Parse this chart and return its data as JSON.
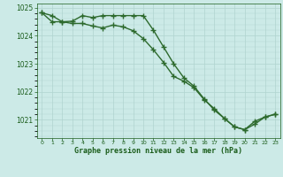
{
  "line1": {
    "x": [
      0,
      1,
      2,
      3,
      4,
      5,
      6,
      7,
      8,
      9,
      10,
      11,
      12,
      13,
      14,
      15,
      16,
      17,
      18,
      19,
      20,
      21,
      22,
      23
    ],
    "y": [
      1024.82,
      1024.72,
      1024.5,
      1024.52,
      1024.72,
      1024.65,
      1024.72,
      1024.72,
      1024.72,
      1024.72,
      1024.72,
      1024.2,
      1023.6,
      1023.0,
      1022.5,
      1022.2,
      1021.75,
      1021.35,
      1021.05,
      1020.75,
      1020.65,
      1020.95,
      1021.1,
      1021.2
    ]
  },
  "line2": {
    "x": [
      0,
      1,
      2,
      3,
      4,
      5,
      6,
      7,
      8,
      9,
      10,
      11,
      12,
      13,
      14,
      15,
      16,
      17,
      18,
      19,
      20,
      21,
      22,
      23
    ],
    "y": [
      1024.82,
      1024.5,
      1024.5,
      1024.44,
      1024.44,
      1024.35,
      1024.28,
      1024.38,
      1024.32,
      1024.18,
      1023.9,
      1023.5,
      1023.05,
      1022.55,
      1022.38,
      1022.15,
      1021.72,
      1021.4,
      1021.05,
      1020.75,
      1020.65,
      1020.85,
      1021.1,
      1021.2
    ]
  },
  "line_color": "#2d6a2d",
  "bg_color": "#cceae7",
  "grid_color": "#b0d4d0",
  "text_color": "#1a5c1a",
  "xlabel": "Graphe pression niveau de la mer (hPa)",
  "ylim": [
    1020.35,
    1025.15
  ],
  "yticks": [
    1021,
    1022,
    1023,
    1024,
    1025
  ],
  "xticks": [
    0,
    1,
    2,
    3,
    4,
    5,
    6,
    7,
    8,
    9,
    10,
    11,
    12,
    13,
    14,
    15,
    16,
    17,
    18,
    19,
    20,
    21,
    22,
    23
  ],
  "marker_size": 4,
  "linewidth": 1.0
}
